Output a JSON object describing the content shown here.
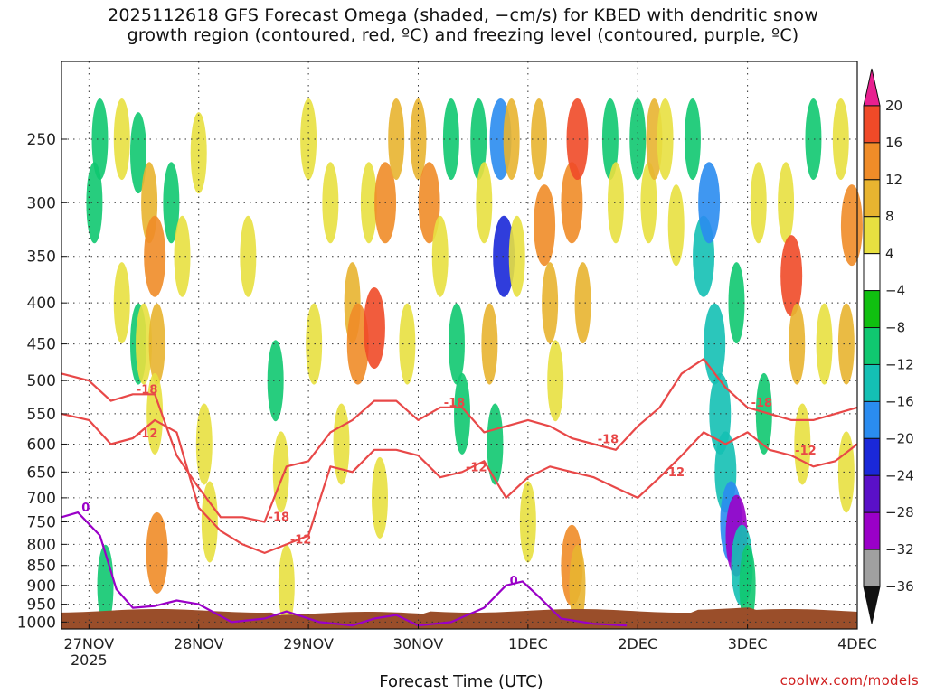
{
  "title_line1": "2025112618 GFS Forecast Omega (shaded, −cm/s) for KBED with dendritic snow",
  "title_line2": "growth region (contoured, red, ºC) and freezing level (contoured, purple, ºC)",
  "credit": "coolwx.com/models",
  "chart_data": {
    "type": "heatmap",
    "title": "2025112618 GFS Forecast Omega (shaded, −cm/s) for KBED with dendritic snow growth region (contoured, red, ºC) and freezing level (contoured, purple, ºC)",
    "xlabel": "Forecast Time (UTC)",
    "ylabel": "",
    "x_ticks": [
      "27NOV",
      "28NOV",
      "29NOV",
      "30NOV",
      "1DEC",
      "2DEC",
      "3DEC",
      "4DEC"
    ],
    "x_year_label": "2025",
    "x_range_days": [
      -0.25,
      7.0
    ],
    "y_ticks": [
      250,
      300,
      350,
      400,
      450,
      500,
      550,
      600,
      650,
      700,
      750,
      800,
      850,
      900,
      950,
      1000
    ],
    "y_range_hpa": [
      200,
      1020
    ],
    "grid": true,
    "colorbar": {
      "levels": [
        -36,
        -32,
        -28,
        -24,
        -20,
        -16,
        -12,
        -8,
        -4,
        4,
        8,
        12,
        16,
        20
      ],
      "tick_labels": [
        "20",
        "16",
        "12",
        "8",
        "4",
        "−4",
        "−8",
        "−12",
        "−16",
        "−20",
        "−24",
        "−28",
        "−32",
        "−36"
      ],
      "colors": [
        "#111111",
        "#a0a0a0",
        "#9a00c8",
        "#5a10c8",
        "#1a28d8",
        "#2a8cf0",
        "#14c0b4",
        "#10c870",
        "#10c010",
        "#ffffff",
        "#e8e040",
        "#e8b430",
        "#f08c28",
        "#f04a28",
        "#e82090"
      ]
    },
    "omega_cells": [
      {
        "t": 0.05,
        "p": 300,
        "v": -8
      },
      {
        "t": 0.1,
        "p": 250,
        "v": -8
      },
      {
        "t": 0.15,
        "p": 900,
        "v": -8
      },
      {
        "t": 0.3,
        "p": 250,
        "v": 6
      },
      {
        "t": 0.3,
        "p": 400,
        "v": 4
      },
      {
        "t": 0.45,
        "p": 260,
        "v": -8
      },
      {
        "t": 0.45,
        "p": 450,
        "v": -8
      },
      {
        "t": 0.5,
        "p": 450,
        "v": 6
      },
      {
        "t": 0.55,
        "p": 300,
        "v": 10
      },
      {
        "t": 0.6,
        "p": 350,
        "v": 14
      },
      {
        "t": 0.62,
        "p": 450,
        "v": 10
      },
      {
        "t": 0.6,
        "p": 550,
        "v": 6
      },
      {
        "t": 0.62,
        "p": 820,
        "v": 14
      },
      {
        "t": 0.75,
        "p": 300,
        "v": -8
      },
      {
        "t": 0.85,
        "p": 350,
        "v": 6
      },
      {
        "t": 1.0,
        "p": 260,
        "v": 6
      },
      {
        "t": 1.05,
        "p": 600,
        "v": 6
      },
      {
        "t": 1.1,
        "p": 750,
        "v": 6
      },
      {
        "t": 1.45,
        "p": 350,
        "v": 4
      },
      {
        "t": 1.7,
        "p": 500,
        "v": -8
      },
      {
        "t": 1.75,
        "p": 650,
        "v": 6
      },
      {
        "t": 1.8,
        "p": 900,
        "v": 6
      },
      {
        "t": 2.0,
        "p": 250,
        "v": 6
      },
      {
        "t": 2.05,
        "p": 450,
        "v": 6
      },
      {
        "t": 2.2,
        "p": 300,
        "v": 4
      },
      {
        "t": 2.3,
        "p": 600,
        "v": 4
      },
      {
        "t": 2.4,
        "p": 400,
        "v": 10
      },
      {
        "t": 2.45,
        "p": 450,
        "v": 14
      },
      {
        "t": 2.55,
        "p": 300,
        "v": 6
      },
      {
        "t": 2.6,
        "p": 430,
        "v": 18
      },
      {
        "t": 2.7,
        "p": 300,
        "v": 12
      },
      {
        "t": 2.8,
        "p": 250,
        "v": 10
      },
      {
        "t": 2.65,
        "p": 700,
        "v": 6
      },
      {
        "t": 2.9,
        "p": 450,
        "v": 6
      },
      {
        "t": 3.0,
        "p": 250,
        "v": 10
      },
      {
        "t": 3.1,
        "p": 300,
        "v": 12
      },
      {
        "t": 3.2,
        "p": 350,
        "v": 6
      },
      {
        "t": 3.3,
        "p": 250,
        "v": -8
      },
      {
        "t": 3.35,
        "p": 450,
        "v": -8
      },
      {
        "t": 3.4,
        "p": 550,
        "v": -8
      },
      {
        "t": 3.55,
        "p": 250,
        "v": -8
      },
      {
        "t": 3.6,
        "p": 300,
        "v": 6
      },
      {
        "t": 3.65,
        "p": 450,
        "v": 10
      },
      {
        "t": 3.7,
        "p": 600,
        "v": -8
      },
      {
        "t": 3.75,
        "p": 250,
        "v": -16
      },
      {
        "t": 3.78,
        "p": 350,
        "v": -20
      },
      {
        "t": 3.85,
        "p": 250,
        "v": 10
      },
      {
        "t": 3.9,
        "p": 350,
        "v": 6
      },
      {
        "t": 4.0,
        "p": 750,
        "v": 6
      },
      {
        "t": 4.1,
        "p": 250,
        "v": 10
      },
      {
        "t": 4.15,
        "p": 320,
        "v": 14
      },
      {
        "t": 4.2,
        "p": 400,
        "v": 10
      },
      {
        "t": 4.25,
        "p": 500,
        "v": 6
      },
      {
        "t": 4.4,
        "p": 300,
        "v": 14
      },
      {
        "t": 4.45,
        "p": 250,
        "v": 18
      },
      {
        "t": 4.5,
        "p": 400,
        "v": 10
      },
      {
        "t": 4.4,
        "p": 850,
        "v": 14
      },
      {
        "t": 4.45,
        "p": 900,
        "v": 10
      },
      {
        "t": 4.75,
        "p": 250,
        "v": -8
      },
      {
        "t": 4.8,
        "p": 300,
        "v": 6
      },
      {
        "t": 5.0,
        "p": 250,
        "v": -8
      },
      {
        "t": 5.1,
        "p": 300,
        "v": 6
      },
      {
        "t": 5.15,
        "p": 250,
        "v": 10
      },
      {
        "t": 5.25,
        "p": 250,
        "v": 6
      },
      {
        "t": 5.35,
        "p": 320,
        "v": 6
      },
      {
        "t": 5.5,
        "p": 250,
        "v": -8
      },
      {
        "t": 5.6,
        "p": 350,
        "v": -12
      },
      {
        "t": 5.65,
        "p": 300,
        "v": -16
      },
      {
        "t": 5.7,
        "p": 450,
        "v": -12
      },
      {
        "t": 5.75,
        "p": 550,
        "v": -12
      },
      {
        "t": 5.8,
        "p": 650,
        "v": -12
      },
      {
        "t": 5.85,
        "p": 750,
        "v": -16
      },
      {
        "t": 5.9,
        "p": 780,
        "v": -28
      },
      {
        "t": 5.95,
        "p": 850,
        "v": -12
      },
      {
        "t": 6.0,
        "p": 900,
        "v": -8
      },
      {
        "t": 5.9,
        "p": 400,
        "v": -8
      },
      {
        "t": 6.1,
        "p": 300,
        "v": 6
      },
      {
        "t": 6.15,
        "p": 550,
        "v": -8
      },
      {
        "t": 6.35,
        "p": 300,
        "v": 6
      },
      {
        "t": 6.4,
        "p": 370,
        "v": 16
      },
      {
        "t": 6.45,
        "p": 450,
        "v": 10
      },
      {
        "t": 6.5,
        "p": 600,
        "v": 6
      },
      {
        "t": 6.6,
        "p": 250,
        "v": -8
      },
      {
        "t": 6.7,
        "p": 450,
        "v": 4
      },
      {
        "t": 6.85,
        "p": 250,
        "v": 6
      },
      {
        "t": 6.95,
        "p": 320,
        "v": 14
      },
      {
        "t": 6.9,
        "p": 450,
        "v": 10
      },
      {
        "t": 6.9,
        "p": 650,
        "v": 6
      }
    ],
    "contour_labels": [
      {
        "text": "-18",
        "color": "#e84848"
      },
      {
        "text": "-12",
        "color": "#e84848"
      },
      {
        "text": "-18",
        "color": "#e84848"
      },
      {
        "text": "-12",
        "color": "#e84848"
      },
      {
        "text": "-18",
        "color": "#e84848"
      },
      {
        "text": "-12",
        "color": "#e84848"
      },
      {
        "text": "-18",
        "color": "#e84848"
      },
      {
        "text": "-12",
        "color": "#e84848"
      },
      {
        "text": "-18",
        "color": "#e84848"
      },
      {
        "text": "-12",
        "color": "#e84848"
      },
      {
        "text": "0",
        "color": "#9a00c8"
      },
      {
        "text": "0",
        "color": "#9a00c8"
      }
    ],
    "contour_minus18": {
      "t": [
        -0.25,
        0.0,
        0.2,
        0.4,
        0.6,
        0.8,
        1.0,
        1.2,
        1.4,
        1.6,
        1.8,
        2.0,
        2.2,
        2.4,
        2.6,
        2.8,
        3.0,
        3.2,
        3.4,
        3.6,
        3.8,
        4.0,
        4.2,
        4.4,
        4.6,
        4.8,
        5.0,
        5.2,
        5.4,
        5.6,
        5.8,
        6.0,
        6.2,
        6.4,
        6.6,
        6.8,
        7.0
      ],
      "p": [
        490,
        500,
        530,
        520,
        520,
        620,
        680,
        740,
        740,
        750,
        640,
        630,
        580,
        560,
        530,
        530,
        560,
        540,
        540,
        580,
        570,
        560,
        570,
        590,
        600,
        610,
        570,
        540,
        490,
        470,
        510,
        540,
        550,
        560,
        560,
        550,
        540
      ]
    },
    "contour_minus12": {
      "t": [
        -0.25,
        0.0,
        0.2,
        0.4,
        0.6,
        0.8,
        1.0,
        1.2,
        1.4,
        1.6,
        1.8,
        2.0,
        2.2,
        2.4,
        2.6,
        2.8,
        3.0,
        3.2,
        3.4,
        3.6,
        3.8,
        4.0,
        4.2,
        4.4,
        4.6,
        4.8,
        5.0,
        5.2,
        5.4,
        5.6,
        5.8,
        6.0,
        6.2,
        6.4,
        6.6,
        6.8,
        7.0
      ],
      "p": [
        550,
        560,
        600,
        590,
        560,
        580,
        720,
        770,
        800,
        820,
        800,
        780,
        640,
        650,
        610,
        610,
        620,
        660,
        650,
        630,
        700,
        660,
        640,
        650,
        660,
        680,
        700,
        660,
        620,
        580,
        600,
        580,
        610,
        620,
        640,
        630,
        600
      ]
    },
    "contour_zero": {
      "t": [
        -0.25,
        -0.1,
        0.1,
        0.25,
        0.4,
        0.6,
        0.8,
        1.0,
        1.3,
        1.6,
        1.8,
        2.1,
        2.4,
        2.6,
        2.8,
        3.0,
        3.3,
        3.6,
        3.8,
        3.95,
        4.1,
        4.3,
        4.6,
        4.9
      ],
      "p": [
        740,
        730,
        780,
        910,
        960,
        955,
        940,
        950,
        1000,
        990,
        970,
        1000,
        1010,
        990,
        980,
        1010,
        1000,
        960,
        900,
        890,
        930,
        990,
        1005,
        1010
      ]
    }
  }
}
